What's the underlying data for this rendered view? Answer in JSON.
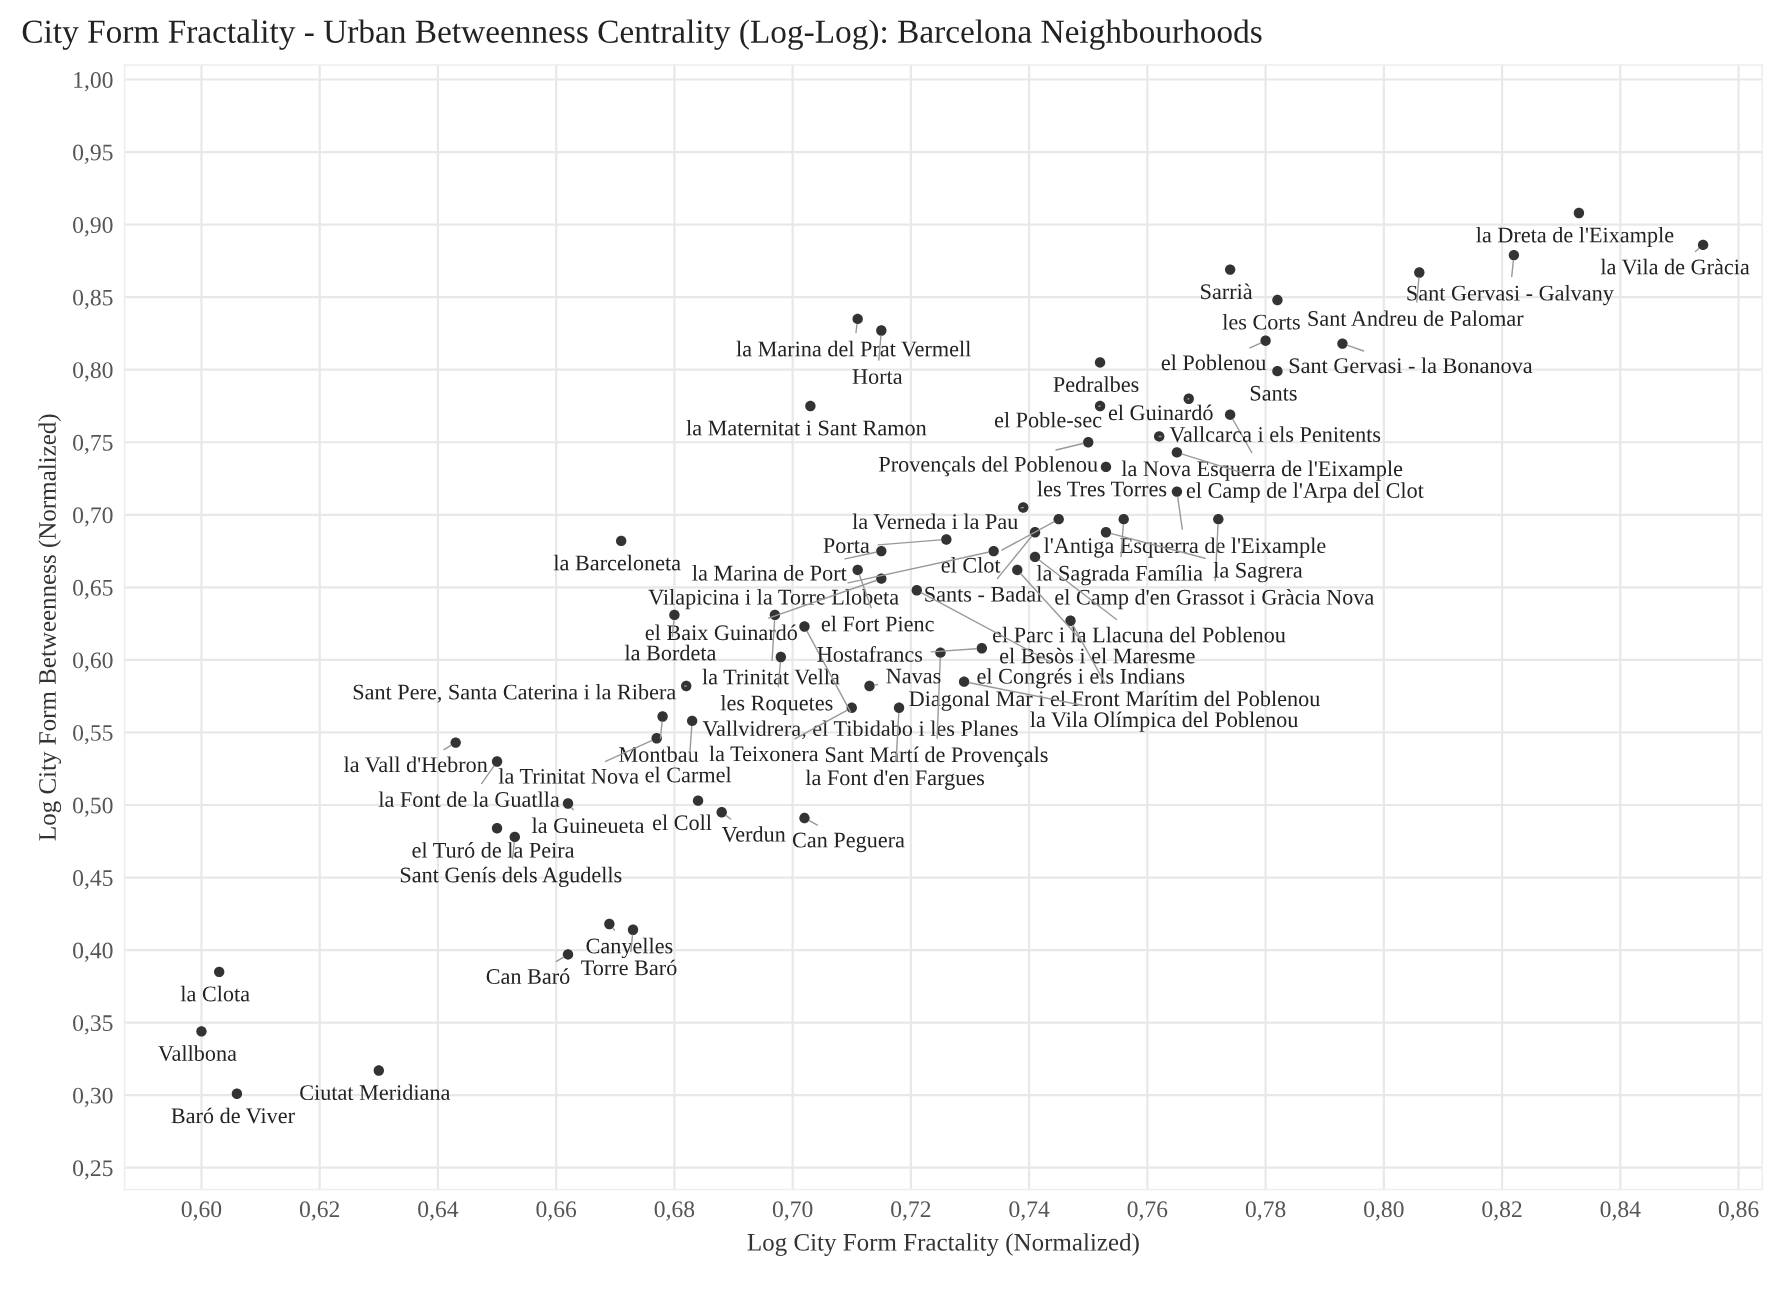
{
  "chart_data": {
    "type": "scatter",
    "title": "City Form Fractality - Urban Betweenness Centrality (Log-Log): Barcelona Neighbourhoods",
    "xlabel": "Log City Form Fractality (Normalized)",
    "ylabel": "Log City Form Betweenness (Normalized)",
    "xlim": [
      0.587,
      0.864
    ],
    "ylim": [
      0.235,
      1.01
    ],
    "xticks": [
      {
        "value": 0.6,
        "label": "0,60"
      },
      {
        "value": 0.62,
        "label": "0,62"
      },
      {
        "value": 0.64,
        "label": "0,64"
      },
      {
        "value": 0.66,
        "label": "0,66"
      },
      {
        "value": 0.68,
        "label": "0,68"
      },
      {
        "value": 0.7,
        "label": "0,70"
      },
      {
        "value": 0.72,
        "label": "0,72"
      },
      {
        "value": 0.74,
        "label": "0,74"
      },
      {
        "value": 0.76,
        "label": "0,76"
      },
      {
        "value": 0.78,
        "label": "0,78"
      },
      {
        "value": 0.8,
        "label": "0,80"
      },
      {
        "value": 0.82,
        "label": "0,82"
      },
      {
        "value": 0.84,
        "label": "0,84"
      },
      {
        "value": 0.86,
        "label": "0,86"
      }
    ],
    "yticks": [
      {
        "value": 0.25,
        "label": "0,25"
      },
      {
        "value": 0.3,
        "label": "0,30"
      },
      {
        "value": 0.35,
        "label": "0,35"
      },
      {
        "value": 0.4,
        "label": "0,40"
      },
      {
        "value": 0.45,
        "label": "0,45"
      },
      {
        "value": 0.5,
        "label": "0,50"
      },
      {
        "value": 0.55,
        "label": "0,55"
      },
      {
        "value": 0.6,
        "label": "0,60"
      },
      {
        "value": 0.65,
        "label": "0,65"
      },
      {
        "value": 0.7,
        "label": "0,70"
      },
      {
        "value": 0.75,
        "label": "0,75"
      },
      {
        "value": 0.8,
        "label": "0,80"
      },
      {
        "value": 0.85,
        "label": "0,85"
      },
      {
        "value": 0.9,
        "label": "0,90"
      },
      {
        "value": 0.95,
        "label": "0,95"
      },
      {
        "value": 1.0,
        "label": "1,00"
      }
    ],
    "grid": true,
    "marker": "circle",
    "series": [
      {
        "color": "#333333",
        "x": [
          0.833,
          0.854,
          0.822,
          0.774,
          0.806,
          0.782,
          0.793,
          0.78,
          0.782,
          0.752,
          0.767,
          0.752,
          0.774,
          0.762,
          0.765,
          0.75,
          0.753,
          0.765,
          0.739,
          0.756,
          0.745,
          0.772,
          0.741,
          0.753,
          0.741,
          0.734,
          0.715,
          0.726,
          0.711,
          0.738,
          0.715,
          0.721,
          0.747,
          0.68,
          0.697,
          0.702,
          0.698,
          0.725,
          0.732,
          0.682,
          0.729,
          0.713,
          0.718,
          0.71,
          0.678,
          0.683,
          0.677,
          0.643,
          0.65,
          0.662,
          0.65,
          0.653,
          0.684,
          0.688,
          0.702,
          0.669,
          0.673,
          0.662,
          0.603,
          0.6,
          0.606,
          0.63,
          0.711,
          0.715,
          0.703,
          0.671
        ],
        "values": [
          0.908,
          0.886,
          0.879,
          0.869,
          0.867,
          0.848,
          0.818,
          0.82,
          0.799,
          0.805,
          0.78,
          0.775,
          0.769,
          0.754,
          0.743,
          0.75,
          0.733,
          0.716,
          0.705,
          0.697,
          0.697,
          0.697,
          0.688,
          0.688,
          0.671,
          0.675,
          0.675,
          0.683,
          0.662,
          0.662,
          0.656,
          0.648,
          0.627,
          0.631,
          0.631,
          0.623,
          0.602,
          0.605,
          0.608,
          0.582,
          0.585,
          0.582,
          0.567,
          0.567,
          0.561,
          0.558,
          0.546,
          0.543,
          0.53,
          0.501,
          0.484,
          0.478,
          0.503,
          0.495,
          0.491,
          0.418,
          0.414,
          0.397,
          0.385,
          0.344,
          0.301,
          0.317,
          0.835,
          0.827,
          0.775,
          0.682
        ]
      }
    ],
    "annotations": [
      {
        "text": "la Dreta de l'Eixample",
        "x": 0.833,
        "y": 0.908
      },
      {
        "text": "la Vila de Gràcia",
        "x": 0.854,
        "y": 0.886
      },
      {
        "text": "Sant Gervasi - Galvany",
        "x": 0.822,
        "y": 0.879
      },
      {
        "text": "Sarrià",
        "x": 0.774,
        "y": 0.869
      },
      {
        "text": "Sant Andreu de Palomar",
        "x": 0.806,
        "y": 0.867
      },
      {
        "text": "les Corts",
        "x": 0.782,
        "y": 0.848
      },
      {
        "text": "Sant Gervasi - la Bonanova",
        "x": 0.793,
        "y": 0.818
      },
      {
        "text": "el Poblenou",
        "x": 0.78,
        "y": 0.82
      },
      {
        "text": "Sants",
        "x": 0.782,
        "y": 0.799
      },
      {
        "text": "Pedralbes",
        "x": 0.752,
        "y": 0.805
      },
      {
        "text": "el Guinardó",
        "x": 0.767,
        "y": 0.78
      },
      {
        "text": "el Poble-sec",
        "x": 0.752,
        "y": 0.775
      },
      {
        "text": "la Nova Esquerra de l'Eixample",
        "x": 0.774,
        "y": 0.769
      },
      {
        "text": "Vallcarca i els Penitents",
        "x": 0.762,
        "y": 0.754
      },
      {
        "text": "el Camp de l'Arpa del Clot",
        "x": 0.765,
        "y": 0.743
      },
      {
        "text": "Provençals del Poblenou",
        "x": 0.75,
        "y": 0.75
      },
      {
        "text": "les Tres Torres",
        "x": 0.753,
        "y": 0.733
      },
      {
        "text": "l'Antiga Esquerra de l'Eixample",
        "x": 0.765,
        "y": 0.716
      },
      {
        "text": "la Verneda i la Pau",
        "x": 0.739,
        "y": 0.705
      },
      {
        "text": "la Sagrada Família",
        "x": 0.756,
        "y": 0.697
      },
      {
        "text": "el Clot",
        "x": 0.745,
        "y": 0.697
      },
      {
        "text": "el Camp d'en Grassot i Gràcia Nova",
        "x": 0.772,
        "y": 0.697
      },
      {
        "text": "Sants - Badal",
        "x": 0.741,
        "y": 0.688
      },
      {
        "text": "la Sagrera",
        "x": 0.753,
        "y": 0.688
      },
      {
        "text": "el Parc i la Llacuna del Poblenou",
        "x": 0.741,
        "y": 0.671
      },
      {
        "text": "Vilapicina i la Torre Llobeta",
        "x": 0.734,
        "y": 0.675
      },
      {
        "text": "la Marina de Port",
        "x": 0.715,
        "y": 0.675
      },
      {
        "text": "Porta",
        "x": 0.726,
        "y": 0.683
      },
      {
        "text": "el Fort Pienc",
        "x": 0.711,
        "y": 0.662
      },
      {
        "text": "el Besòs i el Maresme",
        "x": 0.738,
        "y": 0.662
      },
      {
        "text": "el Baix Guinardó",
        "x": 0.715,
        "y": 0.656
      },
      {
        "text": "el Congrés i els Indians",
        "x": 0.721,
        "y": 0.648
      },
      {
        "text": "Diagonal Mar i el Front Marítim del Poblenou",
        "x": 0.747,
        "y": 0.627
      },
      {
        "text": "la Bordeta",
        "x": 0.68,
        "y": 0.631
      },
      {
        "text": "la Trinitat Vella",
        "x": 0.697,
        "y": 0.631
      },
      {
        "text": "Vallvidrera, el Tibidabo i les Planes",
        "x": 0.702,
        "y": 0.623
      },
      {
        "text": "les Roquetes",
        "x": 0.698,
        "y": 0.602
      },
      {
        "text": "Sant Martí de Provençals",
        "x": 0.725,
        "y": 0.605
      },
      {
        "text": "Hostafrancs",
        "x": 0.732,
        "y": 0.608
      },
      {
        "text": "Sant Pere, Santa Caterina i la Ribera",
        "x": 0.682,
        "y": 0.582
      },
      {
        "text": "la Vila Olímpica del Poblenou",
        "x": 0.729,
        "y": 0.585
      },
      {
        "text": "Navas",
        "x": 0.713,
        "y": 0.582
      },
      {
        "text": "la Font d'en Fargues",
        "x": 0.718,
        "y": 0.567
      },
      {
        "text": "la Teixonera",
        "x": 0.71,
        "y": 0.567
      },
      {
        "text": "Montbau",
        "x": 0.678,
        "y": 0.561
      },
      {
        "text": "el Carmel",
        "x": 0.683,
        "y": 0.558
      },
      {
        "text": "la Trinitat Nova",
        "x": 0.677,
        "y": 0.546
      },
      {
        "text": "la Vall d'Hebron",
        "x": 0.643,
        "y": 0.543
      },
      {
        "text": "la Font de la Guatlla",
        "x": 0.65,
        "y": 0.53
      },
      {
        "text": "la Guineueta",
        "x": 0.662,
        "y": 0.501
      },
      {
        "text": "el Turó de la Peira",
        "x": 0.65,
        "y": 0.484
      },
      {
        "text": "Sant Genís dels Agudells",
        "x": 0.653,
        "y": 0.478
      },
      {
        "text": "el Coll",
        "x": 0.684,
        "y": 0.503
      },
      {
        "text": "Verdun",
        "x": 0.688,
        "y": 0.495
      },
      {
        "text": "Can Peguera",
        "x": 0.702,
        "y": 0.491
      },
      {
        "text": "Canyelles",
        "x": 0.669,
        "y": 0.418
      },
      {
        "text": "Torre Baró",
        "x": 0.673,
        "y": 0.414
      },
      {
        "text": "Can Baró",
        "x": 0.662,
        "y": 0.397
      },
      {
        "text": "la Clota",
        "x": 0.603,
        "y": 0.385
      },
      {
        "text": "Vallbona",
        "x": 0.6,
        "y": 0.344
      },
      {
        "text": "Baró de Viver",
        "x": 0.606,
        "y": 0.301
      },
      {
        "text": "Ciutat Meridiana",
        "x": 0.63,
        "y": 0.317
      },
      {
        "text": "la Marina del Prat Vermell",
        "x": 0.711,
        "y": 0.835
      },
      {
        "text": "Horta",
        "x": 0.715,
        "y": 0.827
      },
      {
        "text": "la Maternitat i Sant Ramon",
        "x": 0.703,
        "y": 0.775
      },
      {
        "text": "la Barceloneta",
        "x": 0.671,
        "y": 0.682
      }
    ]
  }
}
